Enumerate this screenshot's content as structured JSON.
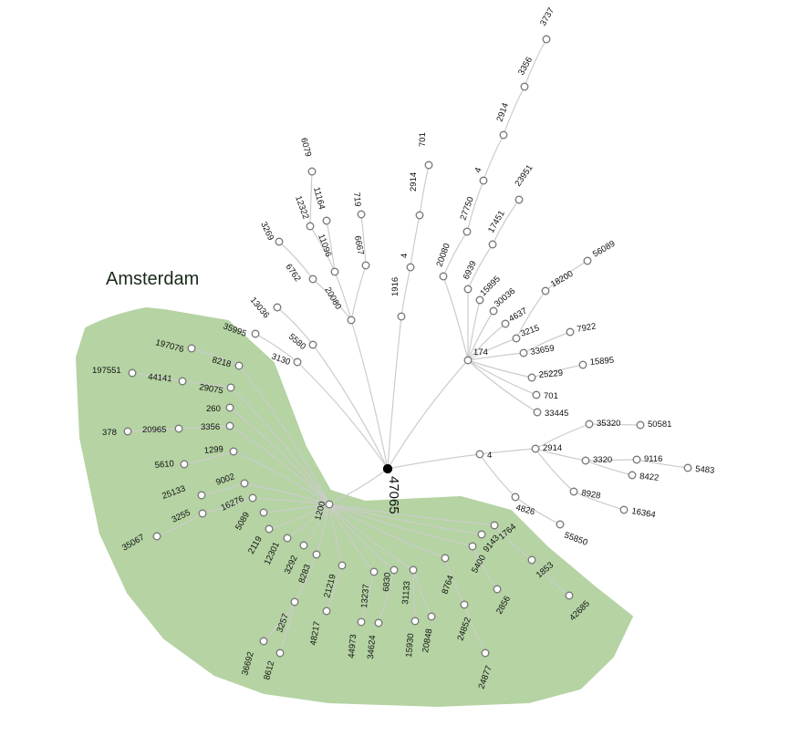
{
  "region": {
    "label": "Amsterdam",
    "color": "#b5d3a3"
  },
  "root": {
    "label": "47065"
  },
  "colors": {
    "edge": "#cccccc",
    "node_stroke": "#777777",
    "root": "#000000"
  },
  "nodes": [
    {
      "id": "r",
      "label": "47065"
    },
    {
      "id": "n1200",
      "parent": "r",
      "label": "1200"
    },
    {
      "id": "n8218",
      "parent": "n1200",
      "label": "8218"
    },
    {
      "id": "n197076",
      "parent": "n8218",
      "label": "197076"
    },
    {
      "id": "n29075",
      "parent": "n1200",
      "label": "29075"
    },
    {
      "id": "n44141",
      "parent": "n29075",
      "label": "44141"
    },
    {
      "id": "n197551",
      "parent": "n44141",
      "label": "197551"
    },
    {
      "id": "n260",
      "parent": "n1200",
      "label": "260"
    },
    {
      "id": "n3356a",
      "parent": "n1200",
      "label": "3356"
    },
    {
      "id": "n20965",
      "parent": "n3356a",
      "label": "20965"
    },
    {
      "id": "n378",
      "parent": "n20965",
      "label": "378"
    },
    {
      "id": "n1299",
      "parent": "n1200",
      "label": "1299"
    },
    {
      "id": "n5610",
      "parent": "n1299",
      "label": "5610"
    },
    {
      "id": "n9002",
      "parent": "n1200",
      "label": "9002"
    },
    {
      "id": "n25133",
      "parent": "n9002",
      "label": "25133"
    },
    {
      "id": "n16276",
      "parent": "n1200",
      "label": "16276"
    },
    {
      "id": "n3255",
      "parent": "n16276",
      "label": "3255"
    },
    {
      "id": "n35067",
      "parent": "n3255",
      "label": "35067"
    },
    {
      "id": "n5089",
      "parent": "n1200",
      "label": "5089"
    },
    {
      "id": "n2119",
      "parent": "n1200",
      "label": "2119"
    },
    {
      "id": "n12301",
      "parent": "n1200",
      "label": "12301"
    },
    {
      "id": "n3292",
      "parent": "n1200",
      "label": "3292"
    },
    {
      "id": "n8283",
      "parent": "n1200",
      "label": "8283"
    },
    {
      "id": "n3257",
      "parent": "n8283",
      "label": "3257"
    },
    {
      "id": "n36692",
      "parent": "n3257",
      "label": "36692"
    },
    {
      "id": "n8612",
      "parent": "n3257",
      "label": "8612"
    },
    {
      "id": "n21219",
      "parent": "n1200",
      "label": "21219"
    },
    {
      "id": "n48217",
      "parent": "n21219",
      "label": "48217"
    },
    {
      "id": "n13237",
      "parent": "n1200",
      "label": "13237"
    },
    {
      "id": "n44973",
      "parent": "n13237",
      "label": "44973"
    },
    {
      "id": "n6830",
      "parent": "n1200",
      "label": "6830"
    },
    {
      "id": "n34624",
      "parent": "n6830",
      "label": "34624"
    },
    {
      "id": "n31133",
      "parent": "n1200",
      "label": "31133"
    },
    {
      "id": "n15930",
      "parent": "n31133",
      "label": "15930"
    },
    {
      "id": "n20848",
      "parent": "n31133",
      "label": "20848"
    },
    {
      "id": "n8764",
      "parent": "n1200",
      "label": "8764"
    },
    {
      "id": "n24852",
      "parent": "n8764",
      "label": "24852"
    },
    {
      "id": "n24877",
      "parent": "n24852",
      "label": "24877"
    },
    {
      "id": "n5400",
      "parent": "n1200",
      "label": "5400"
    },
    {
      "id": "n2856",
      "parent": "n5400",
      "label": "2856"
    },
    {
      "id": "n9143",
      "parent": "n1200",
      "label": "9143"
    },
    {
      "id": "n1764",
      "parent": "n1200",
      "label": "1764"
    },
    {
      "id": "n1853",
      "parent": "n1764",
      "label": "1853"
    },
    {
      "id": "n42685",
      "parent": "n1853",
      "label": "42685"
    },
    {
      "id": "n3130",
      "parent": "r",
      "label": "3130"
    },
    {
      "id": "n35995",
      "parent": "n3130",
      "label": "35995"
    },
    {
      "id": "n5580",
      "parent": "r",
      "label": "5580"
    },
    {
      "id": "n13036",
      "parent": "n5580",
      "label": "13036"
    },
    {
      "id": "n20080",
      "parent": "r",
      "label": "20080"
    },
    {
      "id": "n6762",
      "parent": "n20080",
      "label": "6762"
    },
    {
      "id": "n3269",
      "parent": "n6762",
      "label": "3269"
    },
    {
      "id": "n11096",
      "parent": "n20080",
      "label": "11096"
    },
    {
      "id": "n12322",
      "parent": "n11096",
      "label": "12322"
    },
    {
      "id": "n6079",
      "parent": "n12322",
      "label": "6079"
    },
    {
      "id": "n11164",
      "parent": "n11096",
      "label": "11164"
    },
    {
      "id": "n6667",
      "parent": "n20080",
      "label": "6667"
    },
    {
      "id": "n719",
      "parent": "n6667",
      "label": "719"
    },
    {
      "id": "n1916",
      "parent": "r",
      "label": "1916"
    },
    {
      "id": "n4a",
      "parent": "n1916",
      "label": "4"
    },
    {
      "id": "n2914a",
      "parent": "n4a",
      "label": "2914"
    },
    {
      "id": "n701a",
      "parent": "n2914a",
      "label": "701"
    },
    {
      "id": "n174",
      "parent": "r",
      "label": "174"
    },
    {
      "id": "n20080b",
      "parent": "n174",
      "label": "20080"
    },
    {
      "id": "n27750",
      "parent": "n20080b",
      "label": "27750"
    },
    {
      "id": "n4b",
      "parent": "n27750",
      "label": "4"
    },
    {
      "id": "n2914b",
      "parent": "n4b",
      "label": "2914"
    },
    {
      "id": "n3356b",
      "parent": "n2914b",
      "label": "3356"
    },
    {
      "id": "n3737",
      "parent": "n3356b",
      "label": "3737"
    },
    {
      "id": "n6939",
      "parent": "n174",
      "label": "6939"
    },
    {
      "id": "n17451",
      "parent": "n6939",
      "label": "17451"
    },
    {
      "id": "n23951",
      "parent": "n17451",
      "label": "23951"
    },
    {
      "id": "n15895a",
      "parent": "n174",
      "label": "15895"
    },
    {
      "id": "n30036",
      "parent": "n174",
      "label": "30036"
    },
    {
      "id": "n4637",
      "parent": "n174",
      "label": "4637"
    },
    {
      "id": "n3215",
      "parent": "n174",
      "label": "3215"
    },
    {
      "id": "n18200",
      "parent": "n3215",
      "label": "18200"
    },
    {
      "id": "n56089",
      "parent": "n18200",
      "label": "56089"
    },
    {
      "id": "n33659",
      "parent": "n174",
      "label": "33659"
    },
    {
      "id": "n7922",
      "parent": "n33659",
      "label": "7922"
    },
    {
      "id": "n25229",
      "parent": "n174",
      "label": "25229"
    },
    {
      "id": "n15895b",
      "parent": "n25229",
      "label": "15895"
    },
    {
      "id": "n701b",
      "parent": "n174",
      "label": "701"
    },
    {
      "id": "n33445",
      "parent": "n174",
      "label": "33445"
    },
    {
      "id": "n4c",
      "parent": "r",
      "label": "4"
    },
    {
      "id": "n2914c",
      "parent": "n4c",
      "label": "2914"
    },
    {
      "id": "n35320",
      "parent": "n2914c",
      "label": "35320"
    },
    {
      "id": "n50581",
      "parent": "n35320",
      "label": "50581"
    },
    {
      "id": "n3320",
      "parent": "n2914c",
      "label": "3320"
    },
    {
      "id": "n9116",
      "parent": "n3320",
      "label": "9116"
    },
    {
      "id": "n5483",
      "parent": "n9116",
      "label": "5483"
    },
    {
      "id": "n8422",
      "parent": "n3320",
      "label": "8422"
    },
    {
      "id": "n8928",
      "parent": "n2914c",
      "label": "8928"
    },
    {
      "id": "n16364",
      "parent": "n8928",
      "label": "16364"
    },
    {
      "id": "n4826",
      "parent": "n4c",
      "label": "4826"
    },
    {
      "id": "n55850",
      "parent": "n4826",
      "label": "55850"
    }
  ]
}
